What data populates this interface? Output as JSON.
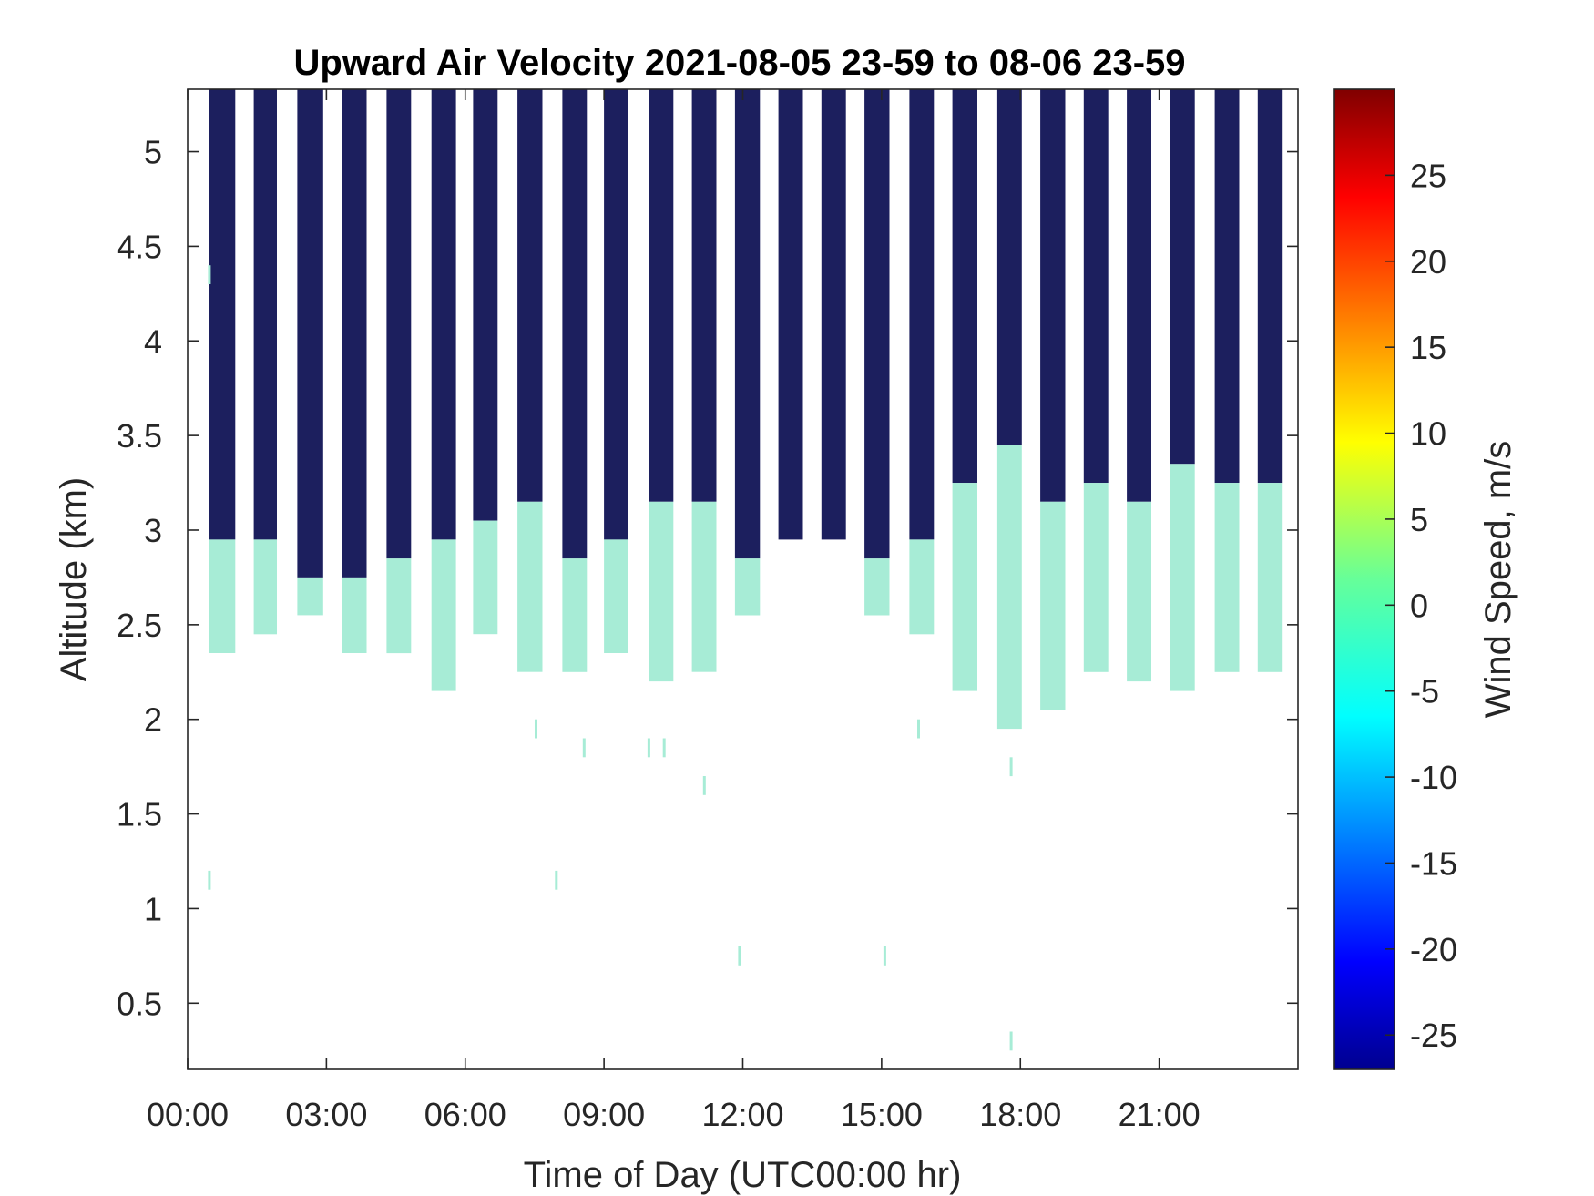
{
  "chart_data": {
    "type": "heatmap",
    "title": "Upward Air Velocity 2021-08-05 23-59 to 08-06 23-59",
    "xlabel": "Time of Day (UTC00:00 hr)",
    "ylabel": "Altitude (km)",
    "xlim_hours": [
      0,
      24
    ],
    "ylim_km": [
      0.15,
      5.33
    ],
    "x_ticks": [
      {
        "hour": 0,
        "label": "00:00"
      },
      {
        "hour": 3,
        "label": "03:00"
      },
      {
        "hour": 6,
        "label": "06:00"
      },
      {
        "hour": 9,
        "label": "09:00"
      },
      {
        "hour": 12,
        "label": "12:00"
      },
      {
        "hour": 15,
        "label": "15:00"
      },
      {
        "hour": 18,
        "label": "18:00"
      },
      {
        "hour": 21,
        "label": "21:00"
      }
    ],
    "y_ticks": [
      {
        "km": 0.5,
        "label": "0.5"
      },
      {
        "km": 1,
        "label": "1"
      },
      {
        "km": 1.5,
        "label": "1.5"
      },
      {
        "km": 2,
        "label": "2"
      },
      {
        "km": 2.5,
        "label": "2.5"
      },
      {
        "km": 3,
        "label": "3"
      },
      {
        "km": 3.5,
        "label": "3.5"
      },
      {
        "km": 4,
        "label": "4"
      },
      {
        "km": 4.5,
        "label": "4.5"
      },
      {
        "km": 5,
        "label": "5"
      }
    ],
    "colorbar": {
      "label": "Wind Speed, m/s",
      "colormap": "jet",
      "range": [
        -27,
        30
      ],
      "ticks": [
        {
          "value": -25,
          "label": "-25"
        },
        {
          "value": -20,
          "label": "-20"
        },
        {
          "value": -15,
          "label": "-15"
        },
        {
          "value": -10,
          "label": "-10"
        },
        {
          "value": -5,
          "label": "-5"
        },
        {
          "value": 0,
          "label": "0"
        },
        {
          "value": 5,
          "label": "5"
        },
        {
          "value": 10,
          "label": "10"
        },
        {
          "value": 15,
          "label": "15"
        },
        {
          "value": 20,
          "label": "20"
        },
        {
          "value": 25,
          "label": "25"
        }
      ]
    },
    "colors": {
      "high_altitude_band": "#1c1f5e",
      "low_altitude_band": "#a7ecd6"
    },
    "data_top_km": 5.33,
    "measurement_blocks": [
      {
        "start_hr": 0.47,
        "end_hr": 1.03,
        "dark_bottom_km": 2.95,
        "green_bottom_km": 2.35
      },
      {
        "start_hr": 1.43,
        "end_hr": 1.93,
        "dark_bottom_km": 2.95,
        "green_bottom_km": 2.45
      },
      {
        "start_hr": 2.37,
        "end_hr": 2.93,
        "dark_bottom_km": 2.75,
        "green_bottom_km": 2.55
      },
      {
        "start_hr": 3.33,
        "end_hr": 3.87,
        "dark_bottom_km": 2.75,
        "green_bottom_km": 2.35
      },
      {
        "start_hr": 4.3,
        "end_hr": 4.83,
        "dark_bottom_km": 2.85,
        "green_bottom_km": 2.35
      },
      {
        "start_hr": 5.27,
        "end_hr": 5.8,
        "dark_bottom_km": 2.95,
        "green_bottom_km": 2.15
      },
      {
        "start_hr": 6.17,
        "end_hr": 6.7,
        "dark_bottom_km": 3.05,
        "green_bottom_km": 2.45
      },
      {
        "start_hr": 7.13,
        "end_hr": 7.67,
        "dark_bottom_km": 3.15,
        "green_bottom_km": 2.25
      },
      {
        "start_hr": 8.1,
        "end_hr": 8.63,
        "dark_bottom_km": 2.85,
        "green_bottom_km": 2.25
      },
      {
        "start_hr": 9.0,
        "end_hr": 9.53,
        "dark_bottom_km": 2.95,
        "green_bottom_km": 2.35
      },
      {
        "start_hr": 9.97,
        "end_hr": 10.5,
        "dark_bottom_km": 3.15,
        "green_bottom_km": 2.2
      },
      {
        "start_hr": 10.9,
        "end_hr": 11.43,
        "dark_bottom_km": 3.15,
        "green_bottom_km": 2.25
      },
      {
        "start_hr": 11.83,
        "end_hr": 12.37,
        "dark_bottom_km": 2.85,
        "green_bottom_km": 2.55
      },
      {
        "start_hr": 12.77,
        "end_hr": 13.3,
        "dark_bottom_km": 2.95,
        "green_bottom_km": null
      },
      {
        "start_hr": 13.7,
        "end_hr": 14.23,
        "dark_bottom_km": 2.95,
        "green_bottom_km": null
      },
      {
        "start_hr": 14.63,
        "end_hr": 15.17,
        "dark_bottom_km": 2.85,
        "green_bottom_km": 2.55
      },
      {
        "start_hr": 15.6,
        "end_hr": 16.13,
        "dark_bottom_km": 2.95,
        "green_bottom_km": 2.45
      },
      {
        "start_hr": 16.53,
        "end_hr": 17.07,
        "dark_bottom_km": 3.25,
        "green_bottom_km": 2.15
      },
      {
        "start_hr": 17.5,
        "end_hr": 18.03,
        "dark_bottom_km": 3.45,
        "green_bottom_km": 1.95
      },
      {
        "start_hr": 18.43,
        "end_hr": 18.97,
        "dark_bottom_km": 3.15,
        "green_bottom_km": 2.05
      },
      {
        "start_hr": 19.37,
        "end_hr": 19.9,
        "dark_bottom_km": 3.25,
        "green_bottom_km": 2.25
      },
      {
        "start_hr": 20.3,
        "end_hr": 20.83,
        "dark_bottom_km": 3.15,
        "green_bottom_km": 2.2
      },
      {
        "start_hr": 21.23,
        "end_hr": 21.77,
        "dark_bottom_km": 3.35,
        "green_bottom_km": 2.15
      },
      {
        "start_hr": 22.2,
        "end_hr": 22.73,
        "dark_bottom_km": 3.25,
        "green_bottom_km": 2.25
      },
      {
        "start_hr": 23.13,
        "end_hr": 23.67,
        "dark_bottom_km": 3.25,
        "green_bottom_km": 2.25
      }
    ],
    "isolated_points": [
      {
        "hour": 0.47,
        "km_low": 1.1,
        "km_high": 1.2
      },
      {
        "hour": 0.47,
        "km_low": 4.3,
        "km_high": 4.4
      },
      {
        "hour": 7.53,
        "km_low": 1.9,
        "km_high": 2.0
      },
      {
        "hour": 7.97,
        "km_low": 1.1,
        "km_high": 1.2
      },
      {
        "hour": 8.57,
        "km_low": 1.8,
        "km_high": 1.9
      },
      {
        "hour": 9.97,
        "km_low": 1.8,
        "km_high": 1.9
      },
      {
        "hour": 10.3,
        "km_low": 1.8,
        "km_high": 1.9
      },
      {
        "hour": 11.17,
        "km_low": 1.6,
        "km_high": 1.7
      },
      {
        "hour": 11.93,
        "km_low": 0.7,
        "km_high": 0.8
      },
      {
        "hour": 15.07,
        "km_low": 0.7,
        "km_high": 0.8
      },
      {
        "hour": 15.8,
        "km_low": 1.9,
        "km_high": 2.0
      },
      {
        "hour": 17.8,
        "km_low": 1.7,
        "km_high": 1.8
      },
      {
        "hour": 17.8,
        "km_low": 0.25,
        "km_high": 0.35
      }
    ]
  }
}
